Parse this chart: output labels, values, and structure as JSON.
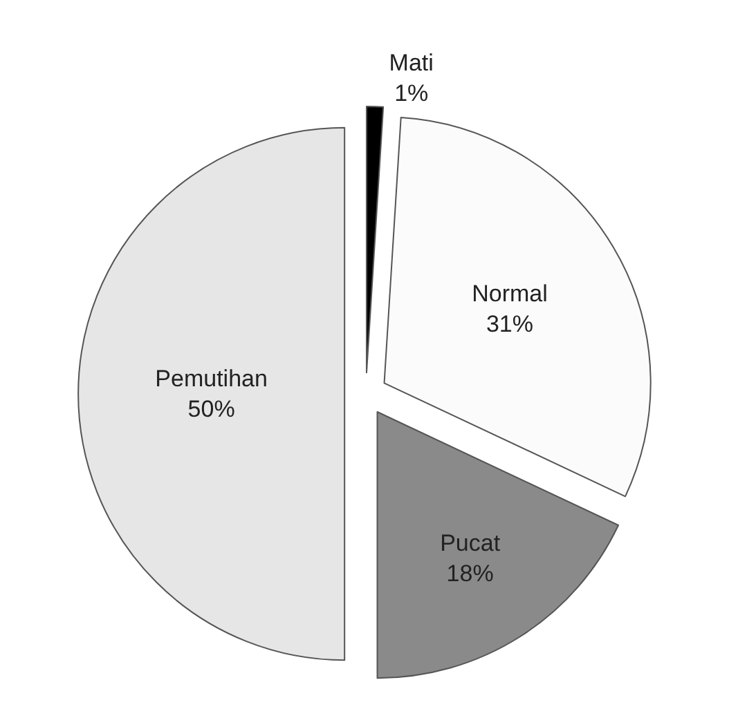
{
  "chart_data": {
    "type": "pie",
    "categories": [
      "Mati",
      "Normal",
      "Pucat",
      "Pemutihan"
    ],
    "values": [
      1,
      31,
      18,
      50
    ],
    "colors": [
      "#000000",
      "#fbfbfb",
      "#8a8a8a",
      "#e6e6e6"
    ],
    "value_labels": [
      "1%",
      "31%",
      "18%",
      "50%"
    ],
    "legend": false
  }
}
